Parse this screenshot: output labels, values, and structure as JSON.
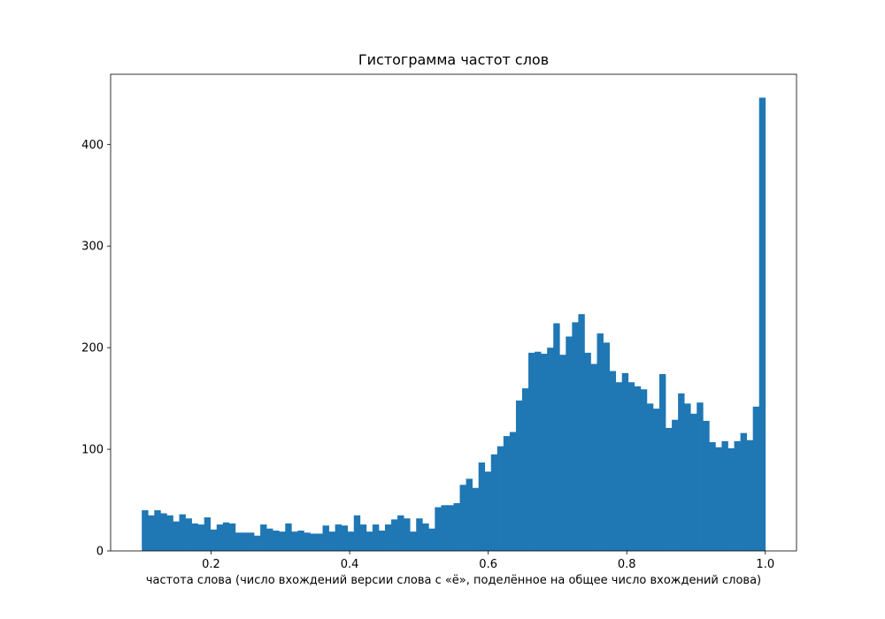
{
  "chart_data": {
    "type": "bar",
    "title": "Гистограмма частот слов",
    "xlabel": "частота слова (число вхождений версии слова с «ё», поделённое на общее число вхождений слова)",
    "ylabel": "",
    "xlim": [
      0.055,
      1.045
    ],
    "ylim": [
      0,
      469
    ],
    "x_ticks": [
      "0.2",
      "0.4",
      "0.6",
      "0.8",
      "1.0"
    ],
    "x_tick_values": [
      0.2,
      0.4,
      0.6,
      0.8,
      1.0
    ],
    "y_ticks": [
      "0",
      "100",
      "200",
      "300",
      "400"
    ],
    "y_tick_values": [
      0,
      100,
      200,
      300,
      400
    ],
    "bins": {
      "start": 0.1,
      "end": 1.0,
      "count": 100
    },
    "values": [
      40,
      35,
      40,
      37,
      35,
      29,
      36,
      32,
      27,
      26,
      33,
      21,
      26,
      28,
      27,
      18,
      18,
      18,
      15,
      26,
      22,
      20,
      19,
      27,
      19,
      20,
      18,
      17,
      17,
      25,
      19,
      26,
      25,
      19,
      35,
      26,
      19,
      26,
      20,
      26,
      31,
      35,
      32,
      19,
      32,
      27,
      22,
      43,
      45,
      45,
      47,
      65,
      71,
      62,
      87,
      78,
      95,
      103,
      113,
      117,
      148,
      160,
      195,
      196,
      194,
      200,
      224,
      193,
      211,
      225,
      233,
      195,
      184,
      214,
      205,
      177,
      166,
      175,
      166,
      162,
      159,
      145,
      140,
      174,
      121,
      129,
      155,
      145,
      135,
      146,
      128,
      107,
      102,
      108,
      101,
      108,
      116,
      109,
      142,
      446
    ],
    "bar_color": "#1f77b4",
    "grid": false,
    "legend": "none"
  }
}
